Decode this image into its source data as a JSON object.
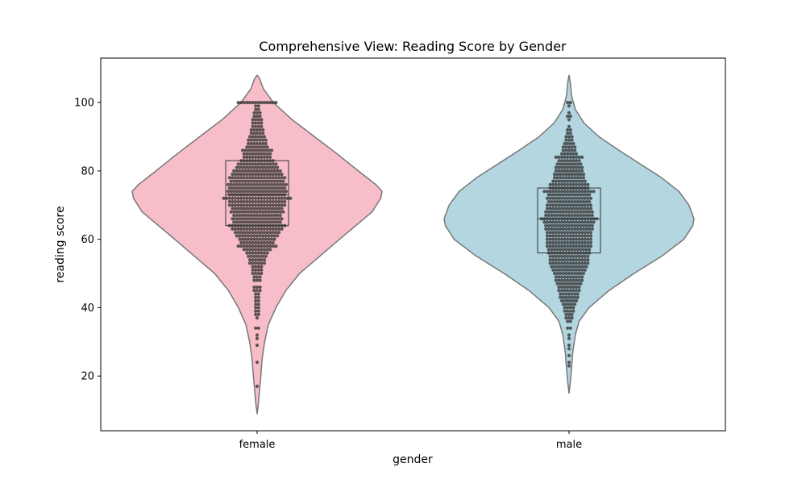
{
  "chart_data": {
    "type": "violin",
    "title": "Comprehensive View: Reading Score by Gender",
    "xlabel": "gender",
    "ylabel": "reading score",
    "categories": [
      "female",
      "male"
    ],
    "ylim": [
      4,
      113
    ],
    "yticks": [
      20,
      40,
      60,
      80,
      100
    ],
    "grid": false,
    "legend": "none",
    "series": [
      {
        "category": "female",
        "color": "#f7bec9",
        "outline": "#777777",
        "range": [
          9,
          108
        ],
        "quartiles": {
          "q1": 64,
          "median": 73,
          "q3": 83
        },
        "density": [
          [
            9,
            0.0
          ],
          [
            12,
            0.01
          ],
          [
            16,
            0.02
          ],
          [
            20,
            0.03
          ],
          [
            25,
            0.04
          ],
          [
            30,
            0.06
          ],
          [
            35,
            0.09
          ],
          [
            40,
            0.15
          ],
          [
            45,
            0.23
          ],
          [
            50,
            0.34
          ],
          [
            55,
            0.5
          ],
          [
            60,
            0.66
          ],
          [
            64,
            0.79
          ],
          [
            68,
            0.92
          ],
          [
            72,
            0.99
          ],
          [
            74,
            1.0
          ],
          [
            76,
            0.95
          ],
          [
            80,
            0.81
          ],
          [
            85,
            0.64
          ],
          [
            90,
            0.46
          ],
          [
            95,
            0.28
          ],
          [
            100,
            0.13
          ],
          [
            104,
            0.05
          ],
          [
            107,
            0.02
          ],
          [
            108,
            0.0
          ]
        ]
      },
      {
        "category": "male",
        "color": "#b3d6e1",
        "outline": "#777777",
        "range": [
          15,
          108
        ],
        "quartiles": {
          "q1": 56,
          "median": 66,
          "q3": 75
        },
        "density": [
          [
            15,
            0.0
          ],
          [
            18,
            0.01
          ],
          [
            22,
            0.02
          ],
          [
            27,
            0.03
          ],
          [
            32,
            0.05
          ],
          [
            36,
            0.08
          ],
          [
            40,
            0.16
          ],
          [
            45,
            0.32
          ],
          [
            50,
            0.52
          ],
          [
            55,
            0.74
          ],
          [
            60,
            0.92
          ],
          [
            64,
            0.99
          ],
          [
            66,
            1.0
          ],
          [
            70,
            0.96
          ],
          [
            74,
            0.88
          ],
          [
            78,
            0.74
          ],
          [
            82,
            0.57
          ],
          [
            86,
            0.4
          ],
          [
            90,
            0.24
          ],
          [
            94,
            0.12
          ],
          [
            98,
            0.05
          ],
          [
            102,
            0.02
          ],
          [
            106,
            0.01
          ],
          [
            108,
            0.0
          ]
        ]
      }
    ],
    "swarm_points": [
      {
        "category": "female",
        "counts": [
          [
            17,
            1
          ],
          [
            24,
            1
          ],
          [
            29,
            1
          ],
          [
            31,
            1
          ],
          [
            32,
            1
          ],
          [
            34,
            2
          ],
          [
            37,
            1
          ],
          [
            38,
            2
          ],
          [
            39,
            2
          ],
          [
            40,
            2
          ],
          [
            41,
            2
          ],
          [
            42,
            2
          ],
          [
            43,
            2
          ],
          [
            44,
            2
          ],
          [
            45,
            3
          ],
          [
            46,
            3
          ],
          [
            48,
            3
          ],
          [
            49,
            3
          ],
          [
            50,
            4
          ],
          [
            51,
            4
          ],
          [
            52,
            4
          ],
          [
            53,
            6
          ],
          [
            54,
            6
          ],
          [
            55,
            7
          ],
          [
            56,
            8
          ],
          [
            57,
            10
          ],
          [
            58,
            14
          ],
          [
            59,
            12
          ],
          [
            60,
            13
          ],
          [
            61,
            15
          ],
          [
            62,
            16
          ],
          [
            63,
            18
          ],
          [
            64,
            20
          ],
          [
            65,
            17
          ],
          [
            66,
            18
          ],
          [
            67,
            17
          ],
          [
            68,
            19
          ],
          [
            69,
            18
          ],
          [
            70,
            20
          ],
          [
            71,
            20
          ],
          [
            72,
            24
          ],
          [
            73,
            20
          ],
          [
            74,
            21
          ],
          [
            75,
            20
          ],
          [
            76,
            21
          ],
          [
            77,
            19
          ],
          [
            78,
            20
          ],
          [
            79,
            18
          ],
          [
            80,
            17
          ],
          [
            81,
            15
          ],
          [
            82,
            14
          ],
          [
            83,
            12
          ],
          [
            84,
            10
          ],
          [
            85,
            10
          ],
          [
            86,
            11
          ],
          [
            87,
            8
          ],
          [
            88,
            7
          ],
          [
            89,
            7
          ],
          [
            90,
            6
          ],
          [
            91,
            5
          ],
          [
            92,
            5
          ],
          [
            93,
            4
          ],
          [
            94,
            4
          ],
          [
            95,
            4
          ],
          [
            96,
            3
          ],
          [
            97,
            3
          ],
          [
            98,
            2
          ],
          [
            99,
            2
          ],
          [
            100,
            14
          ]
        ]
      },
      {
        "category": "male",
        "counts": [
          [
            23,
            1
          ],
          [
            24,
            1
          ],
          [
            26,
            1
          ],
          [
            28,
            1
          ],
          [
            29,
            1
          ],
          [
            31,
            1
          ],
          [
            32,
            1
          ],
          [
            34,
            2
          ],
          [
            36,
            2
          ],
          [
            37,
            3
          ],
          [
            38,
            3
          ],
          [
            39,
            4
          ],
          [
            40,
            4
          ],
          [
            41,
            5
          ],
          [
            42,
            6
          ],
          [
            43,
            7
          ],
          [
            44,
            7
          ],
          [
            45,
            8
          ],
          [
            46,
            8
          ],
          [
            47,
            9
          ],
          [
            48,
            10
          ],
          [
            49,
            10
          ],
          [
            50,
            11
          ],
          [
            51,
            12
          ],
          [
            52,
            13
          ],
          [
            53,
            14
          ],
          [
            54,
            14
          ],
          [
            55,
            14
          ],
          [
            56,
            15
          ],
          [
            57,
            15
          ],
          [
            58,
            16
          ],
          [
            59,
            16
          ],
          [
            60,
            16
          ],
          [
            61,
            16
          ],
          [
            62,
            16
          ],
          [
            63,
            17
          ],
          [
            64,
            17
          ],
          [
            65,
            18
          ],
          [
            66,
            20
          ],
          [
            67,
            17
          ],
          [
            68,
            17
          ],
          [
            69,
            16
          ],
          [
            70,
            16
          ],
          [
            71,
            15
          ],
          [
            72,
            16
          ],
          [
            73,
            15
          ],
          [
            74,
            18
          ],
          [
            75,
            14
          ],
          [
            76,
            14
          ],
          [
            77,
            12
          ],
          [
            78,
            11
          ],
          [
            79,
            11
          ],
          [
            80,
            10
          ],
          [
            81,
            10
          ],
          [
            82,
            9
          ],
          [
            83,
            8
          ],
          [
            84,
            10
          ],
          [
            85,
            6
          ],
          [
            86,
            5
          ],
          [
            87,
            5
          ],
          [
            88,
            4
          ],
          [
            89,
            3
          ],
          [
            90,
            3
          ],
          [
            91,
            2
          ],
          [
            92,
            2
          ],
          [
            93,
            1
          ],
          [
            95,
            1
          ],
          [
            96,
            2
          ],
          [
            97,
            1
          ],
          [
            99,
            1
          ],
          [
            100,
            2
          ]
        ]
      }
    ]
  }
}
